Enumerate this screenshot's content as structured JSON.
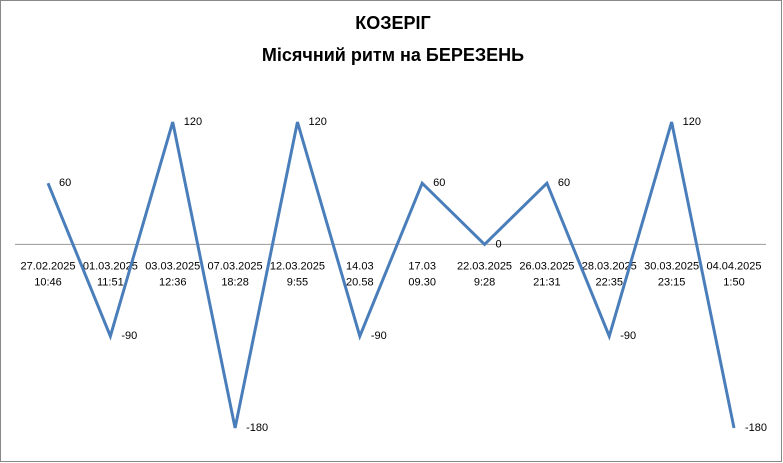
{
  "chart_data": {
    "type": "line",
    "title": "КОЗЕРІГ",
    "subtitle": "Місячний ритм на БЕРЕЗЕНЬ",
    "categories": [
      [
        "27.02.2025",
        "10:46"
      ],
      [
        "01.03.2025",
        "11:51"
      ],
      [
        "03.03.2025",
        "12:36"
      ],
      [
        "07.03.2025",
        "18:28"
      ],
      [
        "12.03.2025",
        "9:55"
      ],
      [
        "14.03",
        "20.58"
      ],
      [
        "17.03",
        "09.30"
      ],
      [
        "22.03.2025",
        "9:28"
      ],
      [
        "26.03.2025",
        "21:31"
      ],
      [
        "28.03.2025",
        "22:35"
      ],
      [
        "30.03.2025",
        "23:15"
      ],
      [
        "04.04.2025",
        "1:50"
      ]
    ],
    "series": [
      {
        "color": "#4a7ebb",
        "values": [
          60,
          -90,
          120,
          -180,
          120,
          -90,
          60,
          0,
          60,
          -90,
          120,
          -180
        ]
      }
    ],
    "ylim": [
      -180,
      120
    ]
  }
}
